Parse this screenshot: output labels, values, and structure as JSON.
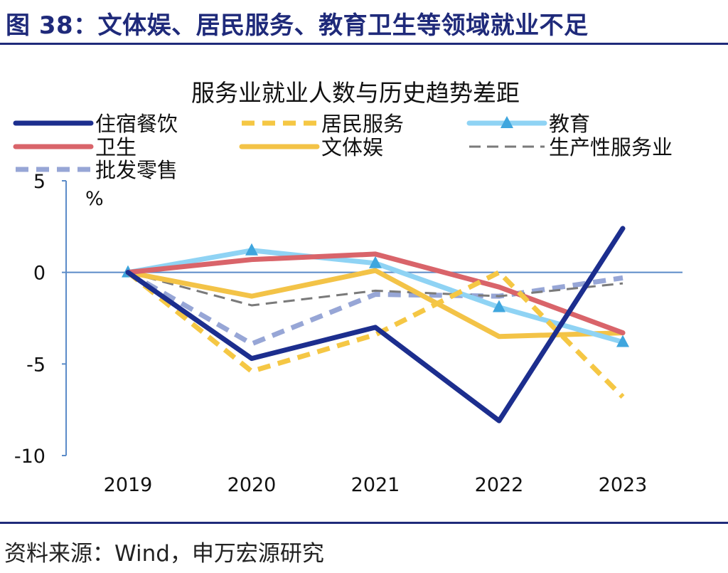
{
  "figure": {
    "title": "图 38：文体娱、居民服务、教育卫生等领域就业不足",
    "source": "资料来源：Wind，申万宏源研究"
  },
  "chart_data": {
    "type": "line",
    "title": "服务业就业人数与历史趋势差距",
    "ylabel": "%",
    "xlabel": "",
    "categories": [
      "2019",
      "2020",
      "2021",
      "2022",
      "2023"
    ],
    "ylim": [
      -10,
      5
    ],
    "yticks": [
      5,
      0,
      -5,
      -10
    ],
    "ytick_labels": [
      "5",
      "0",
      "-5",
      "-10"
    ],
    "legend_position": "top",
    "series": [
      {
        "name": "住宿餐饮",
        "values": [
          0,
          -4.7,
          -3.0,
          -8.1,
          2.4
        ],
        "color": "#1c2e8e",
        "style": "solid",
        "marker": "none"
      },
      {
        "name": "居民服务",
        "values": [
          0,
          -5.4,
          -3.4,
          0.0,
          -6.8
        ],
        "color": "#f5c744",
        "style": "dashed",
        "marker": "none"
      },
      {
        "name": "教育",
        "values": [
          0,
          1.2,
          0.5,
          -1.9,
          -3.8
        ],
        "color": "#8fd3f4",
        "style": "solid",
        "marker": "triangle"
      },
      {
        "name": "卫生",
        "values": [
          0,
          0.7,
          1.0,
          -0.8,
          -3.3
        ],
        "color": "#d9646a",
        "style": "solid",
        "marker": "none"
      },
      {
        "name": "文体娱",
        "values": [
          0,
          -1.3,
          0.1,
          -3.5,
          -3.3
        ],
        "color": "#f3c347",
        "style": "solid",
        "marker": "none"
      },
      {
        "name": "生产性服务业",
        "values": [
          0,
          -1.8,
          -1.0,
          -1.3,
          -0.6
        ],
        "color": "#7a7a7a",
        "style": "dashed-hollow",
        "marker": "none"
      },
      {
        "name": "批发零售",
        "values": [
          0,
          -3.9,
          -1.2,
          -1.3,
          -0.3
        ],
        "color": "#97a6d6",
        "style": "dashed",
        "marker": "none"
      }
    ]
  }
}
